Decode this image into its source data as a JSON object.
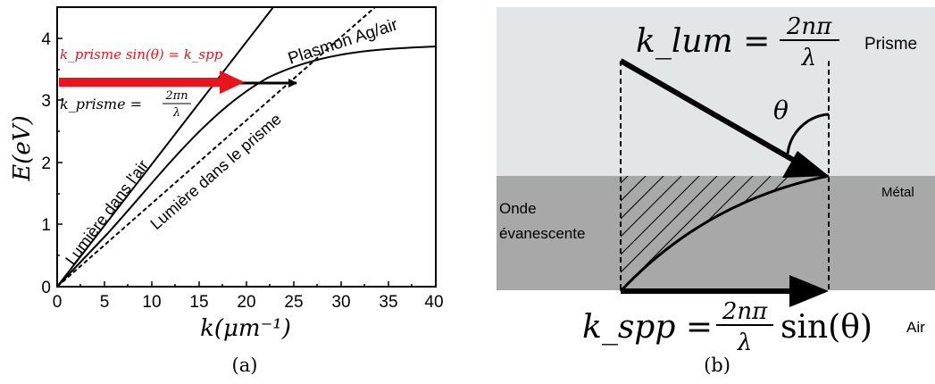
{
  "panel_a": {
    "y_axis_label": "E(eV)",
    "x_axis_label": "k(μm⁻¹)",
    "caption": "(a)",
    "x_ticks": [
      "0",
      "5",
      "10",
      "15",
      "20",
      "25",
      "30",
      "35",
      "40"
    ],
    "y_ticks": [
      "0",
      "1",
      "2",
      "3",
      "4"
    ],
    "label_plasmon": "Plasmon Ag/air",
    "label_light_air": "Lumière dans l'air",
    "label_light_prism": "Lumière dans le prisme",
    "eq_red": "k_prisme sin(θ) = k_spp",
    "eq_k_prism": "k_prisme =",
    "eq_k_prism_num": "2πn",
    "eq_k_prism_den": "λ",
    "red_color": "#e8141e"
  },
  "panel_b": {
    "caption": "(b)",
    "label_prisme": "Prisme",
    "label_metal": "Métal",
    "label_air": "Air",
    "label_onde_1": "Onde",
    "label_onde_2": "évanescente",
    "theta": "θ",
    "eq_klum": "k_lum =",
    "eq_klum_num": "2nπ",
    "eq_klum_den": "λ",
    "eq_kspp": "k_spp =",
    "eq_kspp_num": "2nπ",
    "eq_kspp_den": "λ",
    "eq_kspp_tail": "sin(θ)",
    "prism_color": "#e2e6e6",
    "metal_color": "#a8a8a8"
  }
}
